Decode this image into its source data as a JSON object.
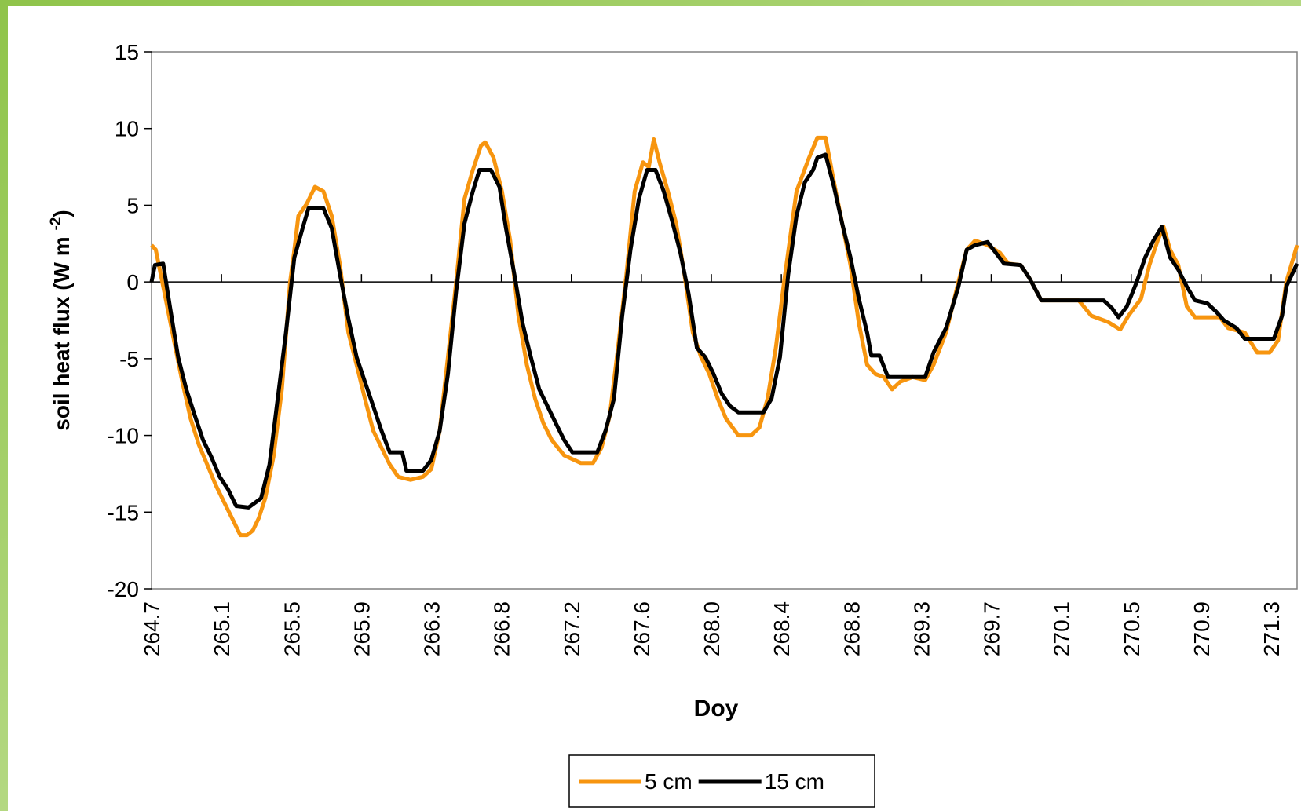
{
  "chart_data": {
    "type": "line",
    "xlabel": "Doy",
    "ylabel": [
      "soil heat flux (W m ",
      "-2",
      ")"
    ],
    "xlim": [
      264.68,
      271.49
    ],
    "ylim": [
      -20,
      15
    ],
    "yticks": [
      15,
      10,
      5,
      0,
      -5,
      -10,
      -15,
      -20
    ],
    "xticks": [
      {
        "value": 264.68,
        "label": "264.7"
      },
      {
        "value": 265.096,
        "label": "265.1"
      },
      {
        "value": 265.512,
        "label": "265.5"
      },
      {
        "value": 265.928,
        "label": "265.9"
      },
      {
        "value": 266.344,
        "label": "266.3"
      },
      {
        "value": 266.76,
        "label": "266.8"
      },
      {
        "value": 267.176,
        "label": "267.2"
      },
      {
        "value": 267.592,
        "label": "267.6"
      },
      {
        "value": 268.008,
        "label": "268.0"
      },
      {
        "value": 268.424,
        "label": "268.4"
      },
      {
        "value": 268.84,
        "label": "268.8"
      },
      {
        "value": 269.256,
        "label": "269.3"
      },
      {
        "value": 269.672,
        "label": "269.7"
      },
      {
        "value": 270.088,
        "label": "270.1"
      },
      {
        "value": 270.504,
        "label": "270.5"
      },
      {
        "value": 270.92,
        "label": "270.9"
      },
      {
        "value": 271.336,
        "label": "271.3"
      }
    ],
    "grid": false,
    "legend": "bottom",
    "series": [
      {
        "name": "5 cm",
        "color": "#f7950f",
        "x": [
          264.68,
          264.705,
          264.764,
          264.813,
          264.863,
          264.912,
          264.961,
          265.011,
          265.06,
          265.109,
          265.159,
          265.208,
          265.248,
          265.282,
          265.317,
          265.356,
          265.405,
          265.455,
          265.504,
          265.529,
          265.553,
          265.603,
          265.652,
          265.702,
          265.751,
          265.8,
          265.85,
          265.899,
          265.948,
          265.998,
          266.047,
          266.096,
          266.146,
          266.22,
          266.294,
          266.343,
          266.393,
          266.442,
          266.491,
          266.54,
          266.59,
          266.639,
          266.664,
          266.713,
          266.763,
          266.812,
          266.861,
          266.911,
          266.96,
          267.009,
          267.059,
          267.133,
          267.231,
          267.305,
          267.355,
          267.404,
          267.453,
          267.503,
          267.552,
          267.601,
          267.636,
          267.666,
          267.7,
          267.75,
          267.799,
          267.848,
          267.898,
          267.947,
          267.996,
          268.046,
          268.095,
          268.169,
          268.243,
          268.293,
          268.342,
          268.391,
          268.44,
          268.514,
          268.589,
          268.638,
          268.687,
          268.737,
          268.786,
          268.835,
          268.885,
          268.934,
          268.983,
          269.033,
          269.082,
          269.131,
          269.205,
          269.279,
          269.329,
          269.403,
          269.477,
          269.526,
          269.576,
          269.65,
          269.724,
          269.773,
          269.847,
          269.896,
          269.97,
          270.192,
          270.266,
          270.365,
          270.439,
          270.488,
          270.562,
          270.612,
          270.661,
          270.696,
          270.735,
          270.784,
          270.834,
          270.883,
          271.031,
          271.08,
          271.179,
          271.253,
          271.327,
          271.377,
          271.426,
          271.49
        ],
        "values": [
          2.4,
          2.1,
          -1.1,
          -3.8,
          -6.5,
          -8.9,
          -10.6,
          -11.9,
          -13.2,
          -14.3,
          -15.4,
          -16.5,
          -16.5,
          -16.2,
          -15.4,
          -14.1,
          -11.4,
          -7.0,
          0.0,
          2.1,
          4.3,
          5.1,
          6.2,
          5.9,
          4.3,
          1.1,
          -3.3,
          -5.4,
          -7.6,
          -9.7,
          -10.8,
          -11.9,
          -12.7,
          -12.9,
          -12.7,
          -12.2,
          -9.7,
          -4.9,
          0.0,
          5.4,
          7.3,
          8.9,
          9.1,
          8.1,
          5.9,
          2.7,
          -2.2,
          -5.4,
          -7.6,
          -9.2,
          -10.3,
          -11.3,
          -11.8,
          -11.8,
          -10.8,
          -8.7,
          -4.3,
          0.5,
          5.9,
          7.8,
          7.5,
          9.3,
          7.8,
          5.9,
          3.8,
          0.5,
          -3.3,
          -4.9,
          -6.0,
          -7.6,
          -8.9,
          -10.0,
          -10.0,
          -9.5,
          -7.6,
          -4.3,
          0.0,
          5.9,
          8.1,
          9.4,
          9.4,
          6.5,
          3.8,
          1.1,
          -2.7,
          -5.4,
          -6.0,
          -6.2,
          -7.0,
          -6.5,
          -6.2,
          -6.4,
          -5.4,
          -3.3,
          0.0,
          2.1,
          2.7,
          2.4,
          1.9,
          1.2,
          1.1,
          0.3,
          -1.2,
          -1.2,
          -2.2,
          -2.6,
          -3.1,
          -2.2,
          -1.1,
          1.1,
          2.7,
          3.6,
          2.1,
          1.1,
          -1.6,
          -2.3,
          -2.3,
          -3.0,
          -3.3,
          -4.6,
          -4.6,
          -3.8,
          0.0,
          2.4
        ]
      },
      {
        "name": "15 cm",
        "color": "#000000",
        "x": [
          264.68,
          264.7,
          264.749,
          264.789,
          264.838,
          264.887,
          264.937,
          264.986,
          265.035,
          265.085,
          265.134,
          265.183,
          265.257,
          265.331,
          265.381,
          265.43,
          265.479,
          265.529,
          265.578,
          265.613,
          265.702,
          265.751,
          265.8,
          265.85,
          265.899,
          265.948,
          265.998,
          266.047,
          266.096,
          266.17,
          266.195,
          266.294,
          266.343,
          266.393,
          266.442,
          266.491,
          266.54,
          266.59,
          266.629,
          266.698,
          266.748,
          266.787,
          266.837,
          266.886,
          266.935,
          266.985,
          267.034,
          267.083,
          267.133,
          267.182,
          267.33,
          267.379,
          267.429,
          267.478,
          267.527,
          267.577,
          267.626,
          267.676,
          267.725,
          267.774,
          267.824,
          267.873,
          267.922,
          267.972,
          268.021,
          268.07,
          268.12,
          268.169,
          268.317,
          268.366,
          268.416,
          268.465,
          268.514,
          268.564,
          268.613,
          268.638,
          268.687,
          268.737,
          268.786,
          268.835,
          268.885,
          268.934,
          268.959,
          269.008,
          269.058,
          269.279,
          269.329,
          269.403,
          269.477,
          269.526,
          269.576,
          269.65,
          269.699,
          269.748,
          269.847,
          269.896,
          269.97,
          270.34,
          270.389,
          270.429,
          270.478,
          270.537,
          270.587,
          270.636,
          270.686,
          270.735,
          270.784,
          270.834,
          270.883,
          270.957,
          271.006,
          271.055,
          271.129,
          271.179,
          271.352,
          271.401,
          271.426,
          271.49
        ],
        "values": [
          0.0,
          1.1,
          1.2,
          -1.6,
          -4.9,
          -7.0,
          -8.7,
          -10.3,
          -11.4,
          -12.7,
          -13.5,
          -14.6,
          -14.7,
          -14.1,
          -11.9,
          -7.6,
          -3.3,
          1.6,
          3.5,
          4.8,
          4.8,
          3.5,
          0.5,
          -2.4,
          -4.9,
          -6.5,
          -8.1,
          -9.7,
          -11.1,
          -11.1,
          -12.3,
          -12.3,
          -11.6,
          -9.7,
          -6.0,
          -0.6,
          3.8,
          5.9,
          7.3,
          7.3,
          6.2,
          3.5,
          0.5,
          -2.7,
          -4.9,
          -7.0,
          -8.1,
          -9.2,
          -10.3,
          -11.1,
          -11.1,
          -9.7,
          -7.6,
          -2.2,
          2.1,
          5.4,
          7.3,
          7.3,
          5.9,
          4.0,
          1.9,
          -0.8,
          -4.3,
          -4.9,
          -6.0,
          -7.3,
          -8.1,
          -8.5,
          -8.5,
          -7.6,
          -4.9,
          0.5,
          4.3,
          6.5,
          7.3,
          8.1,
          8.3,
          6.2,
          3.8,
          1.6,
          -1.1,
          -3.3,
          -4.8,
          -4.8,
          -6.2,
          -6.2,
          -4.6,
          -3.0,
          -0.3,
          2.1,
          2.4,
          2.6,
          1.9,
          1.2,
          1.1,
          0.3,
          -1.2,
          -1.2,
          -1.7,
          -2.3,
          -1.6,
          0.0,
          1.6,
          2.7,
          3.6,
          1.6,
          0.8,
          -0.3,
          -1.2,
          -1.4,
          -1.9,
          -2.5,
          -3.0,
          -3.7,
          -3.7,
          -2.2,
          -0.3,
          1.2
        ]
      }
    ]
  }
}
